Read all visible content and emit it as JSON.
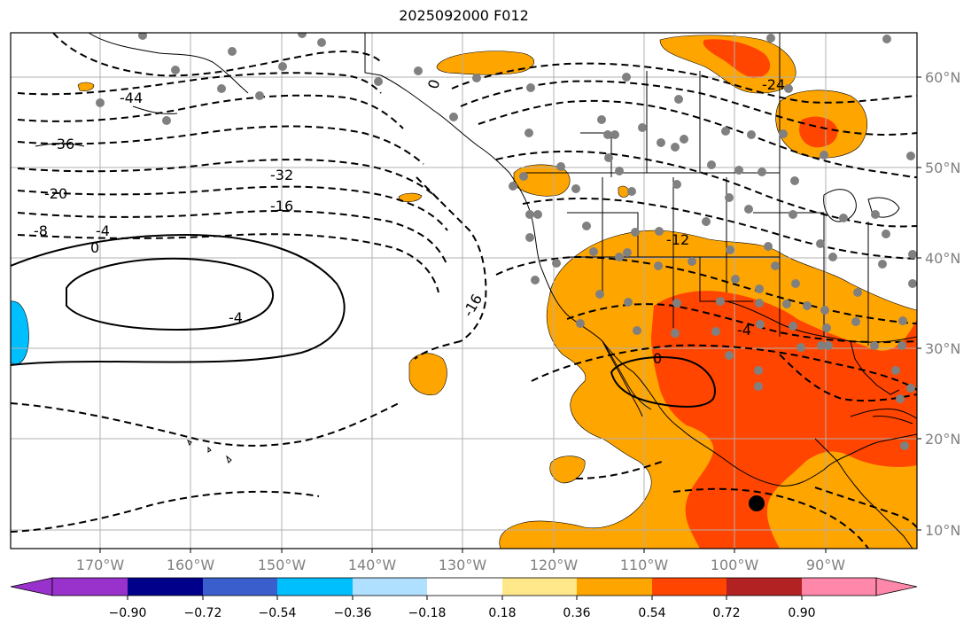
{
  "title": "2025092000 F012",
  "lon_labels": [
    "170°W",
    "160°W",
    "150°W",
    "140°W",
    "130°W",
    "120°W",
    "110°W",
    "100°W",
    "90°W"
  ],
  "lat_labels": [
    "60°N",
    "50°N",
    "40°N",
    "30°N",
    "20°N",
    "10°N"
  ],
  "colorbar": {
    "colors": [
      "#9932cc",
      "#00008b",
      "#3a5fcd",
      "#00bfff",
      "#b0e0ff",
      "#ffffff",
      "#ffe88a",
      "#ffa500",
      "#ff4500",
      "#b22222",
      "#ff88aa"
    ],
    "tick_labels": [
      "−0.90",
      "−0.72",
      "−0.54",
      "−0.36",
      "−0.18",
      "0.18",
      "0.36",
      "0.54",
      "0.72",
      "0.90"
    ]
  },
  "contour_labels": [
    "-44",
    "-36",
    "-32",
    "-20",
    "-16",
    "-8",
    "-4",
    "0",
    "-4",
    "-16",
    "-12",
    "-4",
    "0",
    "-24",
    "0"
  ],
  "colors": {
    "grid": "#b0b0b0",
    "station": "#808080",
    "positive_mid": "#ffa500",
    "positive_high": "#ff4500",
    "negative": "#00bfff"
  }
}
